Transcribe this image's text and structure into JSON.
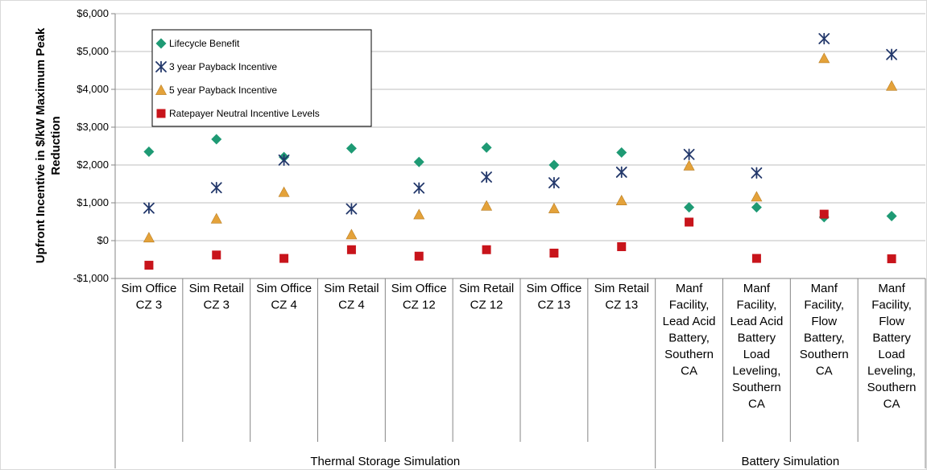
{
  "chart_data": {
    "type": "scatter",
    "ylabel": "Upfront Incentive in $/kW Maximum Peak Reduction",
    "ylim": [
      -1000,
      6000
    ],
    "yticks": [
      {
        "value": 6000,
        "label": "$6,000"
      },
      {
        "value": 5000,
        "label": "$5,000"
      },
      {
        "value": 4000,
        "label": "$4,000"
      },
      {
        "value": 3000,
        "label": "$3,000"
      },
      {
        "value": 2000,
        "label": "$2,000"
      },
      {
        "value": 1000,
        "label": "$1,000"
      },
      {
        "value": 0,
        "label": "$0"
      },
      {
        "value": -1000,
        "label": "-$1,000"
      }
    ],
    "grid": true,
    "legend_position": "top-left",
    "categories": [
      [
        "Sim Office",
        "CZ 3"
      ],
      [
        "Sim Retail",
        "CZ 3"
      ],
      [
        "Sim Office",
        "CZ 4"
      ],
      [
        "Sim Retail",
        "CZ 4"
      ],
      [
        "Sim Office",
        "CZ 12"
      ],
      [
        "Sim Retail",
        "CZ 12"
      ],
      [
        "Sim Office",
        "CZ 13"
      ],
      [
        "Sim Retail",
        "CZ 13"
      ],
      [
        "Manf",
        "Facility,",
        "Lead Acid",
        "Battery,",
        "Southern",
        "CA"
      ],
      [
        "Manf",
        "Facility,",
        "Lead Acid",
        "Battery",
        "Load",
        "Leveling,",
        "Southern",
        "CA"
      ],
      [
        "Manf",
        "Facility,",
        "Flow",
        "Battery,",
        "Southern",
        "CA"
      ],
      [
        "Manf",
        "Facility,",
        "Flow",
        "Battery",
        "Load",
        "Leveling,",
        "Southern",
        "CA"
      ]
    ],
    "groups": [
      {
        "label": "Thermal Storage Simulation",
        "start": 0,
        "end": 7
      },
      {
        "label": "Battery Simulation",
        "start": 8,
        "end": 11
      }
    ],
    "series": [
      {
        "name": "Lifecycle Benefit",
        "marker": "diamond",
        "color": "#1e9a74",
        "values": [
          2350,
          2680,
          2210,
          2440,
          2080,
          2460,
          2000,
          2330,
          880,
          880,
          620,
          650
        ]
      },
      {
        "name": "3 year Payback Incentive",
        "marker": "asterisk",
        "color": "#23386b",
        "values": [
          860,
          1400,
          2130,
          840,
          1390,
          1680,
          1530,
          1810,
          2280,
          1790,
          5340,
          4920
        ]
      },
      {
        "name": "5 year Payback Incentive",
        "marker": "triangle",
        "color": "#e4a23a",
        "values": [
          80,
          580,
          1280,
          160,
          690,
          920,
          850,
          1060,
          1980,
          1160,
          4820,
          4090
        ]
      },
      {
        "name": "Ratepayer Neutral Incentive Levels",
        "marker": "square",
        "color": "#c8141b",
        "values": [
          -650,
          -380,
          -470,
          -240,
          -410,
          -240,
          -330,
          -160,
          490,
          -470,
          700,
          -480
        ]
      }
    ]
  }
}
